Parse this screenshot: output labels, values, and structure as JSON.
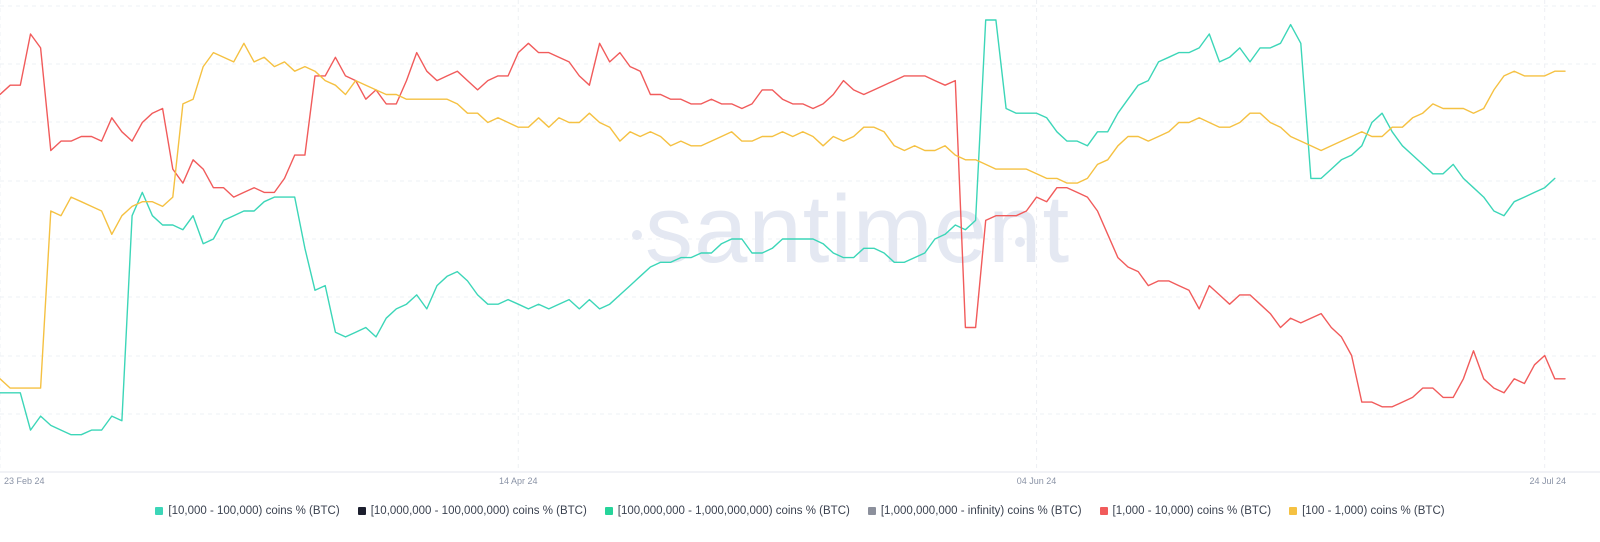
{
  "watermark": "santiment",
  "legend_position": "bottom-center",
  "chart_data": {
    "type": "line",
    "grid": true,
    "ylim": [
      0,
      1
    ],
    "x_start": "23 Feb 24",
    "x_end": "24 Jul 24",
    "x_ticks": [
      {
        "label": "23 Feb 24",
        "index": 0
      },
      {
        "label": "14 Apr 24",
        "index": 51
      },
      {
        "label": "04 Jun 24",
        "index": 102
      },
      {
        "label": "24 Jul 24",
        "index": 152
      }
    ],
    "series": [
      {
        "name": "[10,000 - 100,000) coins % (BTC)",
        "color": "#3cd6b8",
        "values": [
          0.17,
          0.17,
          0.17,
          0.09,
          0.12,
          0.1,
          0.09,
          0.08,
          0.08,
          0.09,
          0.09,
          0.12,
          0.11,
          0.55,
          0.6,
          0.55,
          0.53,
          0.53,
          0.52,
          0.55,
          0.49,
          0.5,
          0.54,
          0.55,
          0.56,
          0.56,
          0.58,
          0.59,
          0.59,
          0.59,
          0.48,
          0.39,
          0.4,
          0.3,
          0.29,
          0.3,
          0.31,
          0.29,
          0.33,
          0.35,
          0.36,
          0.38,
          0.35,
          0.4,
          0.42,
          0.43,
          0.41,
          0.38,
          0.36,
          0.36,
          0.37,
          0.36,
          0.35,
          0.36,
          0.35,
          0.36,
          0.37,
          0.35,
          0.37,
          0.35,
          0.36,
          0.38,
          0.4,
          0.42,
          0.44,
          0.45,
          0.45,
          0.46,
          0.46,
          0.47,
          0.47,
          0.49,
          0.5,
          0.5,
          0.47,
          0.47,
          0.48,
          0.5,
          0.5,
          0.5,
          0.5,
          0.49,
          0.47,
          0.46,
          0.46,
          0.48,
          0.48,
          0.47,
          0.45,
          0.45,
          0.46,
          0.47,
          0.5,
          0.51,
          0.53,
          0.52,
          0.54,
          0.97,
          0.97,
          0.78,
          0.77,
          0.77,
          0.77,
          0.76,
          0.73,
          0.71,
          0.71,
          0.7,
          0.73,
          0.73,
          0.77,
          0.8,
          0.83,
          0.84,
          0.88,
          0.89,
          0.9,
          0.9,
          0.91,
          0.94,
          0.88,
          0.89,
          0.91,
          0.88,
          0.91,
          0.91,
          0.92,
          0.96,
          0.92,
          0.63,
          0.63,
          0.65,
          0.67,
          0.68,
          0.7,
          0.75,
          0.77,
          0.73,
          0.7,
          0.68,
          0.66,
          0.64,
          0.64,
          0.66,
          0.63,
          0.61,
          0.59,
          0.56,
          0.55,
          0.58,
          0.59,
          0.6,
          0.61,
          0.63
        ]
      },
      {
        "name": "[10,000,000 - 100,000,000) coins % (BTC)",
        "color": "#1c1f2e",
        "values": []
      },
      {
        "name": "[100,000,000 - 1,000,000,000) coins % (BTC)",
        "color": "#26d49a",
        "values": []
      },
      {
        "name": "[1,000,000,000 - infinity) coins % (BTC)",
        "color": "#8c909c",
        "values": []
      },
      {
        "name": "[1,000 - 10,000) coins % (BTC)",
        "color": "#f15b5b",
        "values": [
          0.81,
          0.83,
          0.83,
          0.94,
          0.91,
          0.69,
          0.71,
          0.71,
          0.72,
          0.72,
          0.71,
          0.76,
          0.73,
          0.71,
          0.75,
          0.77,
          0.78,
          0.65,
          0.62,
          0.67,
          0.65,
          0.61,
          0.61,
          0.59,
          0.6,
          0.61,
          0.6,
          0.6,
          0.63,
          0.68,
          0.68,
          0.85,
          0.85,
          0.89,
          0.85,
          0.84,
          0.8,
          0.82,
          0.79,
          0.79,
          0.84,
          0.9,
          0.86,
          0.84,
          0.85,
          0.86,
          0.84,
          0.82,
          0.84,
          0.85,
          0.85,
          0.9,
          0.92,
          0.9,
          0.9,
          0.89,
          0.88,
          0.85,
          0.83,
          0.92,
          0.88,
          0.9,
          0.87,
          0.86,
          0.81,
          0.81,
          0.8,
          0.8,
          0.79,
          0.79,
          0.8,
          0.79,
          0.79,
          0.78,
          0.79,
          0.82,
          0.82,
          0.8,
          0.79,
          0.79,
          0.78,
          0.79,
          0.81,
          0.84,
          0.82,
          0.81,
          0.82,
          0.83,
          0.84,
          0.85,
          0.85,
          0.85,
          0.84,
          0.83,
          0.84,
          0.31,
          0.31,
          0.54,
          0.55,
          0.55,
          0.55,
          0.56,
          0.59,
          0.58,
          0.61,
          0.61,
          0.6,
          0.59,
          0.56,
          0.51,
          0.46,
          0.44,
          0.43,
          0.4,
          0.41,
          0.41,
          0.4,
          0.39,
          0.35,
          0.4,
          0.38,
          0.36,
          0.38,
          0.38,
          0.36,
          0.34,
          0.31,
          0.33,
          0.32,
          0.33,
          0.34,
          0.31,
          0.29,
          0.25,
          0.15,
          0.15,
          0.14,
          0.14,
          0.15,
          0.16,
          0.18,
          0.18,
          0.16,
          0.16,
          0.2,
          0.26,
          0.2,
          0.18,
          0.17,
          0.2,
          0.19,
          0.23,
          0.25,
          0.2,
          0.2
        ]
      },
      {
        "name": "[100 - 1,000) coins % (BTC)",
        "color": "#f5c142",
        "values": [
          0.2,
          0.18,
          0.18,
          0.18,
          0.18,
          0.56,
          0.55,
          0.59,
          0.58,
          0.57,
          0.56,
          0.51,
          0.55,
          0.57,
          0.58,
          0.58,
          0.57,
          0.59,
          0.79,
          0.8,
          0.87,
          0.9,
          0.89,
          0.88,
          0.92,
          0.88,
          0.89,
          0.87,
          0.88,
          0.86,
          0.87,
          0.86,
          0.84,
          0.83,
          0.81,
          0.84,
          0.83,
          0.82,
          0.81,
          0.81,
          0.8,
          0.8,
          0.8,
          0.8,
          0.8,
          0.79,
          0.77,
          0.77,
          0.75,
          0.76,
          0.75,
          0.74,
          0.74,
          0.76,
          0.74,
          0.76,
          0.75,
          0.75,
          0.77,
          0.75,
          0.74,
          0.71,
          0.73,
          0.72,
          0.73,
          0.72,
          0.7,
          0.71,
          0.7,
          0.7,
          0.71,
          0.72,
          0.73,
          0.71,
          0.71,
          0.72,
          0.72,
          0.73,
          0.72,
          0.73,
          0.72,
          0.7,
          0.72,
          0.71,
          0.72,
          0.74,
          0.74,
          0.73,
          0.7,
          0.69,
          0.7,
          0.69,
          0.69,
          0.7,
          0.68,
          0.67,
          0.67,
          0.66,
          0.65,
          0.65,
          0.65,
          0.65,
          0.64,
          0.63,
          0.63,
          0.62,
          0.62,
          0.63,
          0.66,
          0.67,
          0.7,
          0.72,
          0.72,
          0.71,
          0.72,
          0.73,
          0.75,
          0.75,
          0.76,
          0.75,
          0.74,
          0.74,
          0.75,
          0.77,
          0.77,
          0.75,
          0.74,
          0.72,
          0.71,
          0.7,
          0.69,
          0.7,
          0.71,
          0.72,
          0.73,
          0.72,
          0.72,
          0.74,
          0.74,
          0.76,
          0.77,
          0.79,
          0.78,
          0.78,
          0.78,
          0.77,
          0.78,
          0.82,
          0.85,
          0.86,
          0.85,
          0.85,
          0.85,
          0.86,
          0.86
        ]
      }
    ]
  }
}
